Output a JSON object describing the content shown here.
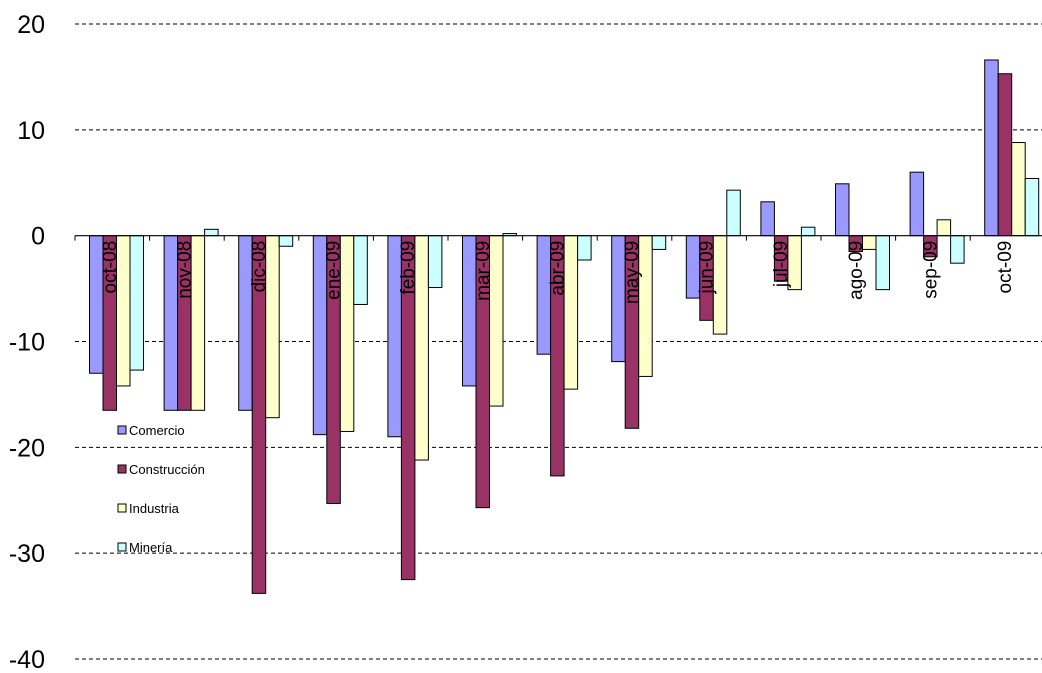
{
  "chart_data": {
    "type": "bar",
    "categories": [
      "oct-08",
      "nov-08",
      "dic-08",
      "ene-09",
      "feb-09",
      "mar-09",
      "abr-09",
      "may-09",
      "jun-09",
      "jul-09",
      "ago-09",
      "sep-09",
      "oct-09"
    ],
    "series": [
      {
        "name": "Comercio",
        "color": "#9999ff",
        "values": [
          -13.0,
          -16.5,
          -16.5,
          -18.8,
          -19.0,
          -14.2,
          -11.2,
          -11.9,
          -5.9,
          3.2,
          4.9,
          6.0,
          16.6
        ]
      },
      {
        "name": "Construcción",
        "color": "#993366",
        "values": [
          -16.5,
          -16.5,
          -33.8,
          -25.3,
          -32.5,
          -25.7,
          -22.7,
          -18.2,
          -8.0,
          -4.3,
          -1.5,
          -2.0,
          15.3
        ]
      },
      {
        "name": "Industria",
        "color": "#ffffcc",
        "values": [
          -14.2,
          -16.5,
          -17.2,
          -18.5,
          -21.2,
          -16.1,
          -14.5,
          -13.3,
          -9.3,
          -5.1,
          -1.3,
          1.5,
          8.8
        ]
      },
      {
        "name": "Minería",
        "color": "#ccffff",
        "values": [
          -12.7,
          0.6,
          -1.0,
          -6.5,
          -4.9,
          0.2,
          -2.3,
          -1.3,
          4.3,
          0.8,
          -5.1,
          -2.6,
          5.4
        ]
      }
    ],
    "ylim": [
      -40,
      20
    ],
    "yticks": [
      -40,
      -30,
      -20,
      -10,
      0,
      10,
      20
    ],
    "grid": true,
    "legend_position": "lower-left"
  }
}
